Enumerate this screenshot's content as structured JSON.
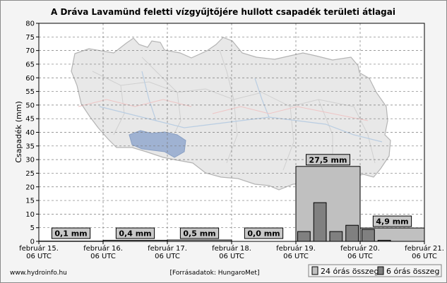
{
  "chart_data": {
    "type": "bar",
    "title": "A Dráva Lavamünd feletti vízgyűjtőjére hullott csapadék területi átlagai",
    "ylabel": "Csapadék (mm)",
    "xlabel": "",
    "ylim": [
      0,
      80
    ],
    "yticks": [
      0,
      5,
      10,
      15,
      20,
      25,
      30,
      35,
      40,
      45,
      50,
      55,
      60,
      65,
      70,
      75,
      80
    ],
    "xlim_days": [
      15,
      21
    ],
    "xticks": [
      {
        "day": 15,
        "line1": "február 15.",
        "line2": "06 UTC"
      },
      {
        "day": 16,
        "line1": "február 16.",
        "line2": "06 UTC"
      },
      {
        "day": 17,
        "line1": "február 17.",
        "line2": "06 UTC"
      },
      {
        "day": 18,
        "line1": "február 18.",
        "line2": "06 UTC"
      },
      {
        "day": 19,
        "line1": "február 19.",
        "line2": "06 UTC"
      },
      {
        "day": 20,
        "line1": "február 20.",
        "line2": "06 UTC"
      },
      {
        "day": 21,
        "line1": "február 21.",
        "line2": "06 UTC"
      }
    ],
    "grid": true,
    "series": [
      {
        "name": "24 órás összeg",
        "color": "#c0c0c0",
        "bars": [
          {
            "start": 15,
            "end": 16,
            "value": 0.1,
            "label": "0,1 mm"
          },
          {
            "start": 16,
            "end": 17,
            "value": 0.4,
            "label": "0,4 mm"
          },
          {
            "start": 17,
            "end": 18,
            "value": 0.5,
            "label": "0,5 mm"
          },
          {
            "start": 18,
            "end": 19,
            "value": 0.0,
            "label": "0,0 mm"
          },
          {
            "start": 19,
            "end": 20,
            "value": 27.5,
            "label": "27,5 mm"
          },
          {
            "start": 20,
            "end": 21,
            "value": 4.9,
            "label": "4,9 mm"
          }
        ]
      },
      {
        "name": "6 órás összeg",
        "color": "#808080",
        "bars": [
          {
            "start": 19.0,
            "end": 19.25,
            "value": 3.6
          },
          {
            "start": 19.25,
            "end": 19.5,
            "value": 14.2
          },
          {
            "start": 19.5,
            "end": 19.75,
            "value": 3.6
          },
          {
            "start": 19.75,
            "end": 20.0,
            "value": 5.9
          },
          {
            "start": 20.0,
            "end": 20.25,
            "value": 4.4
          },
          {
            "start": 20.25,
            "end": 20.5,
            "value": 0.4
          }
        ]
      }
    ],
    "legend_position": "bottom-right"
  },
  "footer": {
    "left": "www.hydroinfo.hu",
    "center": "[Forrásadatok: HungaroMet]"
  },
  "colors": {
    "background": "#f4f4f4",
    "plot_background": "#ffffff",
    "lake": "#9fb2d2",
    "basin_fill": "#e6e6e6"
  },
  "icons": {
    "legend_24": "grey-square",
    "legend_6": "dark-grey-square"
  }
}
